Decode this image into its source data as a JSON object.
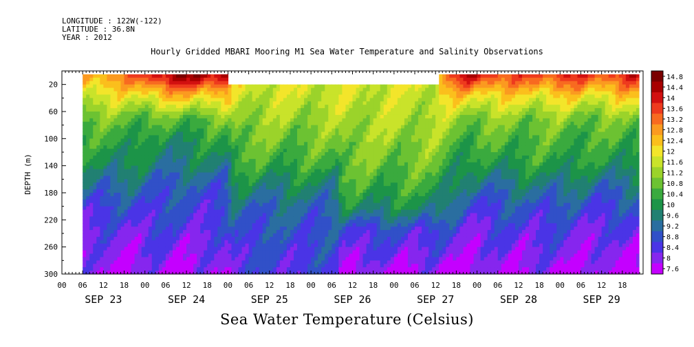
{
  "header": {
    "longitude": "LONGITUDE : 122W(-122)",
    "latitude": "LATITUDE : 36.8N",
    "year": "YEAR : 2012"
  },
  "chart_data": {
    "type": "heatmap",
    "title": "Hourly Gridded MBARI Mooring M1 Sea Water Temperature and Salinity Observations",
    "xlabel": "Sea Water Temperature (Celsius)",
    "ylabel": "DEPTH (m)",
    "y_range": [
      0,
      300
    ],
    "y_inverted": true,
    "y_ticks": [
      20,
      60,
      100,
      140,
      180,
      220,
      260,
      300
    ],
    "x_hour_ticks": [
      "00",
      "06",
      "12",
      "18",
      "00",
      "06",
      "12",
      "18",
      "00",
      "06",
      "12",
      "18",
      "00",
      "06",
      "12",
      "18",
      "00",
      "06",
      "12",
      "18",
      "00",
      "06",
      "12",
      "18",
      "00",
      "06",
      "12",
      "18"
    ],
    "x_day_labels": [
      "SEP 23",
      "SEP 24",
      "SEP 25",
      "SEP 26",
      "SEP 27",
      "SEP 28",
      "SEP 29"
    ],
    "colorbar": {
      "levels": [
        "14.8",
        "14.4",
        "14",
        "13.6",
        "13.2",
        "12.8",
        "12.4",
        "12",
        "11.6",
        "11.2",
        "10.8",
        "10.4",
        "10",
        "9.6",
        "9.2",
        "8.8",
        "8.4",
        "8",
        "7.6"
      ],
      "colors": [
        "#7a0000",
        "#a80000",
        "#d21010",
        "#ee3a1e",
        "#f86a20",
        "#fb9a20",
        "#fbbf1c",
        "#f3e52a",
        "#c9e32a",
        "#9bd32a",
        "#6cc232",
        "#3aaa3e",
        "#1c9448",
        "#218072",
        "#2a6ea0",
        "#3150c8",
        "#4a34e6",
        "#8626ee",
        "#c400ff"
      ]
    },
    "depth_profiles": [
      {
        "day": 0.25,
        "temps": [
          13.0,
          12.0,
          11.0,
          10.5,
          10.0,
          9.5,
          8.8,
          8.5,
          8.2,
          8.0
        ]
      },
      {
        "day": 0.8,
        "temps": [
          13.2,
          12.0,
          11.0,
          10.5,
          10.1,
          9.4,
          8.8,
          8.4,
          8.1,
          7.8
        ]
      },
      {
        "day": 1.1,
        "temps": [
          14.4,
          12.4,
          10.8,
          10.0,
          9.7,
          9.2,
          8.9,
          8.6,
          8.3,
          8.0
        ]
      },
      {
        "day": 1.6,
        "temps": [
          14.8,
          12.6,
          10.9,
          10.2,
          9.8,
          9.1,
          8.8,
          8.5,
          8.2,
          7.9
        ]
      },
      {
        "day": 2.0,
        "temps": [
          14.6,
          12.4,
          11.0,
          10.3,
          9.8,
          9.2,
          8.8,
          8.5,
          8.2,
          8.0
        ]
      },
      {
        "day": 2.05,
        "temps": [
          12.0,
          11.8,
          11.4,
          11.0,
          10.6,
          9.9,
          9.3,
          9.0,
          8.8,
          8.6
        ]
      },
      {
        "day": 3.33,
        "temps": [
          12.0,
          11.8,
          11.4,
          11.0,
          10.6,
          9.9,
          9.3,
          9.0,
          8.8,
          8.6
        ]
      },
      {
        "day": 3.36,
        "temps": [
          12.0,
          11.8,
          11.6,
          11.3,
          11.0,
          10.6,
          10.0,
          8.8,
          8.4,
          7.9
        ]
      },
      {
        "day": 4.5,
        "temps": [
          12.0,
          11.8,
          11.6,
          11.3,
          11.0,
          10.6,
          10.0,
          8.8,
          8.4,
          7.9
        ]
      },
      {
        "day": 4.55,
        "temps": [
          13.0,
          12.2,
          11.6,
          11.2,
          10.9,
          10.4,
          9.8,
          8.8,
          8.3,
          7.9
        ]
      },
      {
        "day": 4.9,
        "temps": [
          14.4,
          12.4,
          11.2,
          10.6,
          10.1,
          9.4,
          8.8,
          8.4,
          8.1,
          7.8
        ]
      },
      {
        "day": 5.5,
        "temps": [
          13.6,
          12.2,
          11.2,
          10.8,
          10.4,
          9.6,
          9.0,
          8.6,
          8.3,
          8.0
        ]
      },
      {
        "day": 6.0,
        "temps": [
          14.0,
          12.3,
          11.2,
          10.7,
          10.4,
          9.7,
          9.0,
          8.6,
          8.3,
          8.0
        ]
      },
      {
        "day": 6.5,
        "temps": [
          13.8,
          12.2,
          11.0,
          10.6,
          10.2,
          9.4,
          8.8,
          8.4,
          8.1,
          7.8
        ]
      },
      {
        "day": 6.95,
        "temps": [
          14.2,
          12.4,
          11.2,
          10.7,
          10.3,
          9.5,
          8.9,
          8.5,
          8.2,
          7.9
        ]
      }
    ]
  }
}
